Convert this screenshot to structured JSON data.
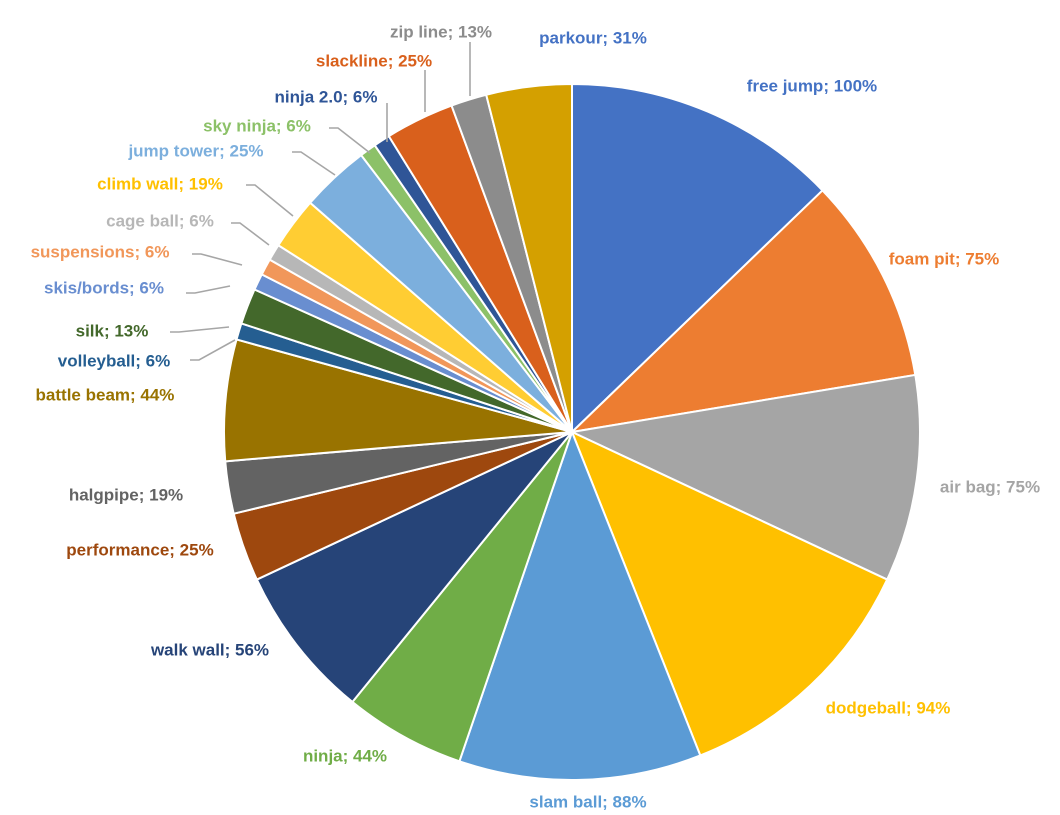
{
  "chart_data": {
    "type": "pie",
    "title": "",
    "start_angle_deg": 0,
    "direction": "clockwise",
    "legend": "none",
    "slices": [
      {
        "label": "free jump; 100%",
        "name": "free jump",
        "value": 100,
        "color": "#4472c4"
      },
      {
        "label": "foam pit; 75%",
        "name": "foam pit",
        "value": 75,
        "color": "#ed7d31"
      },
      {
        "label": "air bag; 75%",
        "name": "air bag",
        "value": 75,
        "color": "#a5a5a5"
      },
      {
        "label": "dodgeball; 94%",
        "name": "dodgeball",
        "value": 94,
        "color": "#ffc000"
      },
      {
        "label": "slam ball; 88%",
        "name": "slam ball",
        "value": 88,
        "color": "#5b9bd5"
      },
      {
        "label": "ninja; 44%",
        "name": "ninja",
        "value": 44,
        "color": "#70ad47"
      },
      {
        "label": "walk wall; 56%",
        "name": "walk wall",
        "value": 56,
        "color": "#264478"
      },
      {
        "label": "performance; 25%",
        "name": "performance",
        "value": 25,
        "color": "#9e480e"
      },
      {
        "label": "halgpipe; 19%",
        "name": "halgpipe",
        "value": 19,
        "color": "#636363"
      },
      {
        "label": "battle beam; 44%",
        "name": "battle beam",
        "value": 44,
        "color": "#997300"
      },
      {
        "label": "volleyball; 6%",
        "name": "volleyball",
        "value": 6,
        "color": "#255e91"
      },
      {
        "label": "silk; 13%",
        "name": "silk",
        "value": 13,
        "color": "#43682b"
      },
      {
        "label": "skis/bords; 6%",
        "name": "skis/bords",
        "value": 6,
        "color": "#698ed0"
      },
      {
        "label": "suspensions; 6%",
        "name": "suspensions",
        "value": 6,
        "color": "#f1975a"
      },
      {
        "label": "cage ball; 6%",
        "name": "cage ball",
        "value": 6,
        "color": "#b7b7b7"
      },
      {
        "label": "climb wall; 19%",
        "name": "climb wall",
        "value": 19,
        "color": "#ffcd33"
      },
      {
        "label": "jump tower; 25%",
        "name": "jump tower",
        "value": 25,
        "color": "#7cafdd"
      },
      {
        "label": "sky ninja; 6%",
        "name": "sky ninja",
        "value": 6,
        "color": "#8cc168"
      },
      {
        "label": "ninja 2.0; 6%",
        "name": "ninja 2.0",
        "value": 6,
        "color": "#2f5597"
      },
      {
        "label": "slackline; 25%",
        "name": "slackline",
        "value": 25,
        "color": "#d9601c"
      },
      {
        "label": "zip line; 13%",
        "name": "zip line",
        "value": 13,
        "color": "#8c8c8c"
      },
      {
        "label": "parkour; 31%",
        "name": "parkour",
        "value": 31,
        "color": "#d4a000"
      }
    ]
  }
}
